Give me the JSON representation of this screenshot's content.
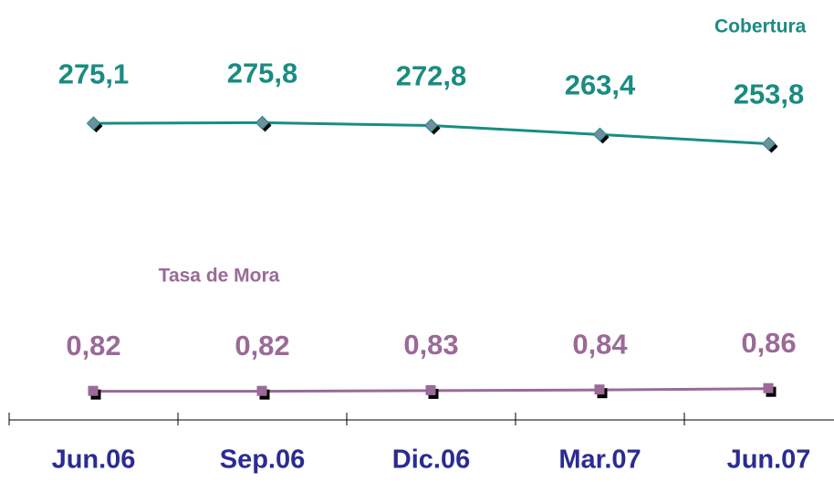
{
  "chart_data": {
    "type": "line",
    "categories": [
      "Jun.06",
      "Sep.06",
      "Dic.06",
      "Mar.07",
      "Jun.07"
    ],
    "series": [
      {
        "name": "Cobertura",
        "color": "#1a8c82",
        "values": [
          275.1,
          275.8,
          272.8,
          263.4,
          253.8
        ],
        "value_labels": [
          "275,1",
          "275,8",
          "272,8",
          "263,4",
          "253,8"
        ]
      },
      {
        "name": "Tasa de Mora",
        "color": "#9a6a98",
        "axis": "y2",
        "values": [
          0.82,
          0.82,
          0.83,
          0.84,
          0.86
        ],
        "value_labels": [
          "0,82",
          "0,82",
          "0,83",
          "0,84",
          "0,86"
        ]
      }
    ],
    "ylim": [
      -35,
      385
    ],
    "y2lim": [
      0.4,
      6.3
    ],
    "grid": false
  }
}
